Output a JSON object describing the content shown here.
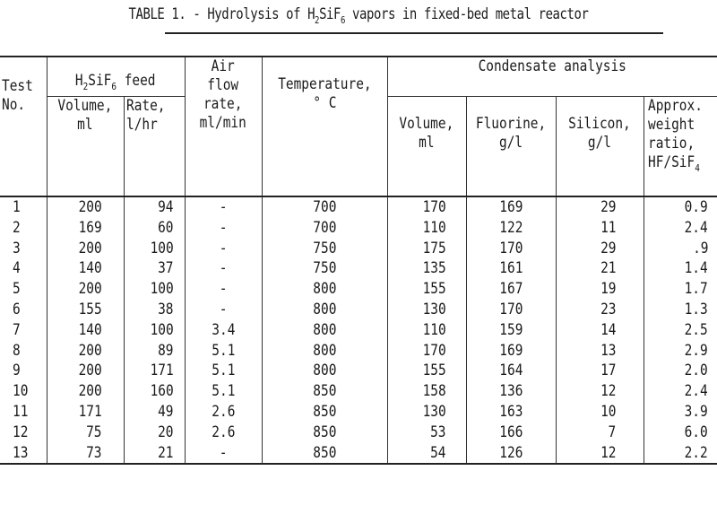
{
  "document": {
    "title_prefix": "TABLE 1. - Hydrolysis of H",
    "title_sub1": "2",
    "title_mid": "SiF",
    "title_sub2": "6",
    "title_suffix": " vapors in fixed-bed metal reactor"
  },
  "table": {
    "headers": {
      "test_line1": "Test",
      "test_line2": "No.",
      "feed_group_prefix": "H",
      "feed_group_sub1": "2",
      "feed_group_mid": "SiF",
      "feed_group_sub2": "6",
      "feed_group_suffix": " feed",
      "feed_volume_line1": "Volume,",
      "feed_volume_line2": "ml",
      "feed_rate_line1": "Rate,",
      "feed_rate_line2": "l/hr",
      "air_line1": "Air",
      "air_line2": "flow",
      "air_line3": "rate,",
      "air_line4": "ml/min",
      "temp_line1": "Temperature,",
      "temp_line2": "° C",
      "condensate_group": "Condensate analysis",
      "cond_volume_line1": "Volume,",
      "cond_volume_line2": "ml",
      "fluorine_line1": "Fluorine,",
      "fluorine_line2": "g/l",
      "silicon_line1": "Silicon,",
      "silicon_line2": "g/l",
      "ratio_line1": "Approx.",
      "ratio_line2": "weight",
      "ratio_line3": "ratio,",
      "ratio_line4": "HF/SiF",
      "ratio_line4_sub": "4"
    },
    "rows": [
      {
        "test": "1",
        "feed_volume": "200",
        "feed_rate": "94",
        "air_flow": "-",
        "temperature": "700",
        "cond_volume": "170",
        "fluorine": "169",
        "silicon": "29",
        "ratio": "0.9"
      },
      {
        "test": "2",
        "feed_volume": "169",
        "feed_rate": "60",
        "air_flow": "-",
        "temperature": "700",
        "cond_volume": "110",
        "fluorine": "122",
        "silicon": "11",
        "ratio": "2.4"
      },
      {
        "test": "3",
        "feed_volume": "200",
        "feed_rate": "100",
        "air_flow": "-",
        "temperature": "750",
        "cond_volume": "175",
        "fluorine": "170",
        "silicon": "29",
        "ratio": ".9"
      },
      {
        "test": "4",
        "feed_volume": "140",
        "feed_rate": "37",
        "air_flow": "-",
        "temperature": "750",
        "cond_volume": "135",
        "fluorine": "161",
        "silicon": "21",
        "ratio": "1.4"
      },
      {
        "test": "5",
        "feed_volume": "200",
        "feed_rate": "100",
        "air_flow": "-",
        "temperature": "800",
        "cond_volume": "155",
        "fluorine": "167",
        "silicon": "19",
        "ratio": "1.7"
      },
      {
        "test": "6",
        "feed_volume": "155",
        "feed_rate": "38",
        "air_flow": "-",
        "temperature": "800",
        "cond_volume": "130",
        "fluorine": "170",
        "silicon": "23",
        "ratio": "1.3"
      },
      {
        "test": "7",
        "feed_volume": "140",
        "feed_rate": "100",
        "air_flow": "3.4",
        "temperature": "800",
        "cond_volume": "110",
        "fluorine": "159",
        "silicon": "14",
        "ratio": "2.5"
      },
      {
        "test": "8",
        "feed_volume": "200",
        "feed_rate": "89",
        "air_flow": "5.1",
        "temperature": "800",
        "cond_volume": "170",
        "fluorine": "169",
        "silicon": "13",
        "ratio": "2.9"
      },
      {
        "test": "9",
        "feed_volume": "200",
        "feed_rate": "171",
        "air_flow": "5.1",
        "temperature": "800",
        "cond_volume": "155",
        "fluorine": "164",
        "silicon": "17",
        "ratio": "2.0"
      },
      {
        "test": "10",
        "feed_volume": "200",
        "feed_rate": "160",
        "air_flow": "5.1",
        "temperature": "850",
        "cond_volume": "158",
        "fluorine": "136",
        "silicon": "12",
        "ratio": "2.4"
      },
      {
        "test": "11",
        "feed_volume": "171",
        "feed_rate": "49",
        "air_flow": "2.6",
        "temperature": "850",
        "cond_volume": "130",
        "fluorine": "163",
        "silicon": "10",
        "ratio": "3.9"
      },
      {
        "test": "12",
        "feed_volume": "75",
        "feed_rate": "20",
        "air_flow": "2.6",
        "temperature": "850",
        "cond_volume": "53",
        "fluorine": "166",
        "silicon": "7",
        "ratio": "6.0"
      },
      {
        "test": "13",
        "feed_volume": "73",
        "feed_rate": "21",
        "air_flow": "-",
        "temperature": "850",
        "cond_volume": "54",
        "fluorine": "126",
        "silicon": "12",
        "ratio": "2.2"
      }
    ]
  }
}
